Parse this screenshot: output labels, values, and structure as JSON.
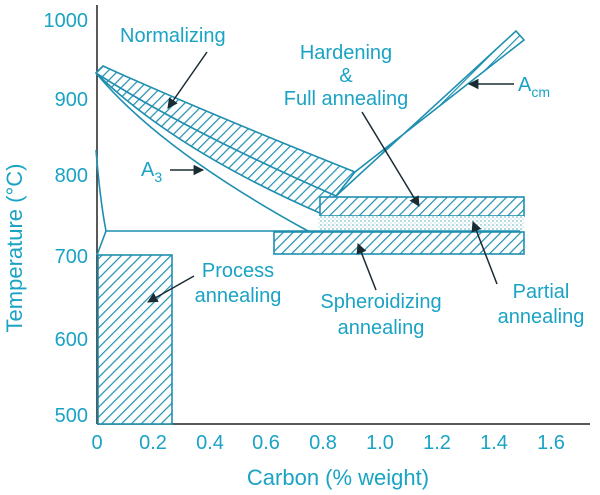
{
  "colors": {
    "accent": "#1aa3c4",
    "outline": "#1f8fb0",
    "hatch": "#1f8fb0",
    "dots": "#7fbfd0"
  },
  "axes": {
    "xlabel": "Carbon (% weight)",
    "ylabel": "Temperature (°C)",
    "x_ticks": [
      "0",
      "0.2",
      "0.4",
      "0.6",
      "0.8",
      "1.0",
      "1.2",
      "1.4",
      "1.6"
    ],
    "y_ticks": [
      "500",
      "600",
      "700",
      "800",
      "900",
      "1000"
    ]
  },
  "labels": {
    "normalizing": "Normalizing",
    "hardening_1": "Hardening",
    "hardening_2": "&",
    "hardening_3": "Full annealing",
    "a3": "A",
    "a3_sub": "3",
    "acm": "A",
    "acm_sub": "cm",
    "process_1": "Process",
    "process_2": "annealing",
    "spheroidizing_1": "Spheroidizing",
    "spheroidizing_2": "annealing",
    "partial_1": "Partial",
    "partial_2": "annealing"
  },
  "chart_data": {
    "type": "diagram",
    "xlim": [
      0,
      1.6
    ],
    "ylim": [
      500,
      1000
    ],
    "regions": [
      {
        "name": "Normalizing",
        "fill": "hatched"
      },
      {
        "name": "Hardening & Full annealing",
        "fill": "hatched"
      },
      {
        "name": "Spheroidizing annealing",
        "fill": "hatched"
      },
      {
        "name": "Partial annealing",
        "fill": "dotted"
      },
      {
        "name": "Process annealing",
        "fill": "hatched"
      }
    ],
    "lines": [
      "A3",
      "Acm"
    ]
  }
}
